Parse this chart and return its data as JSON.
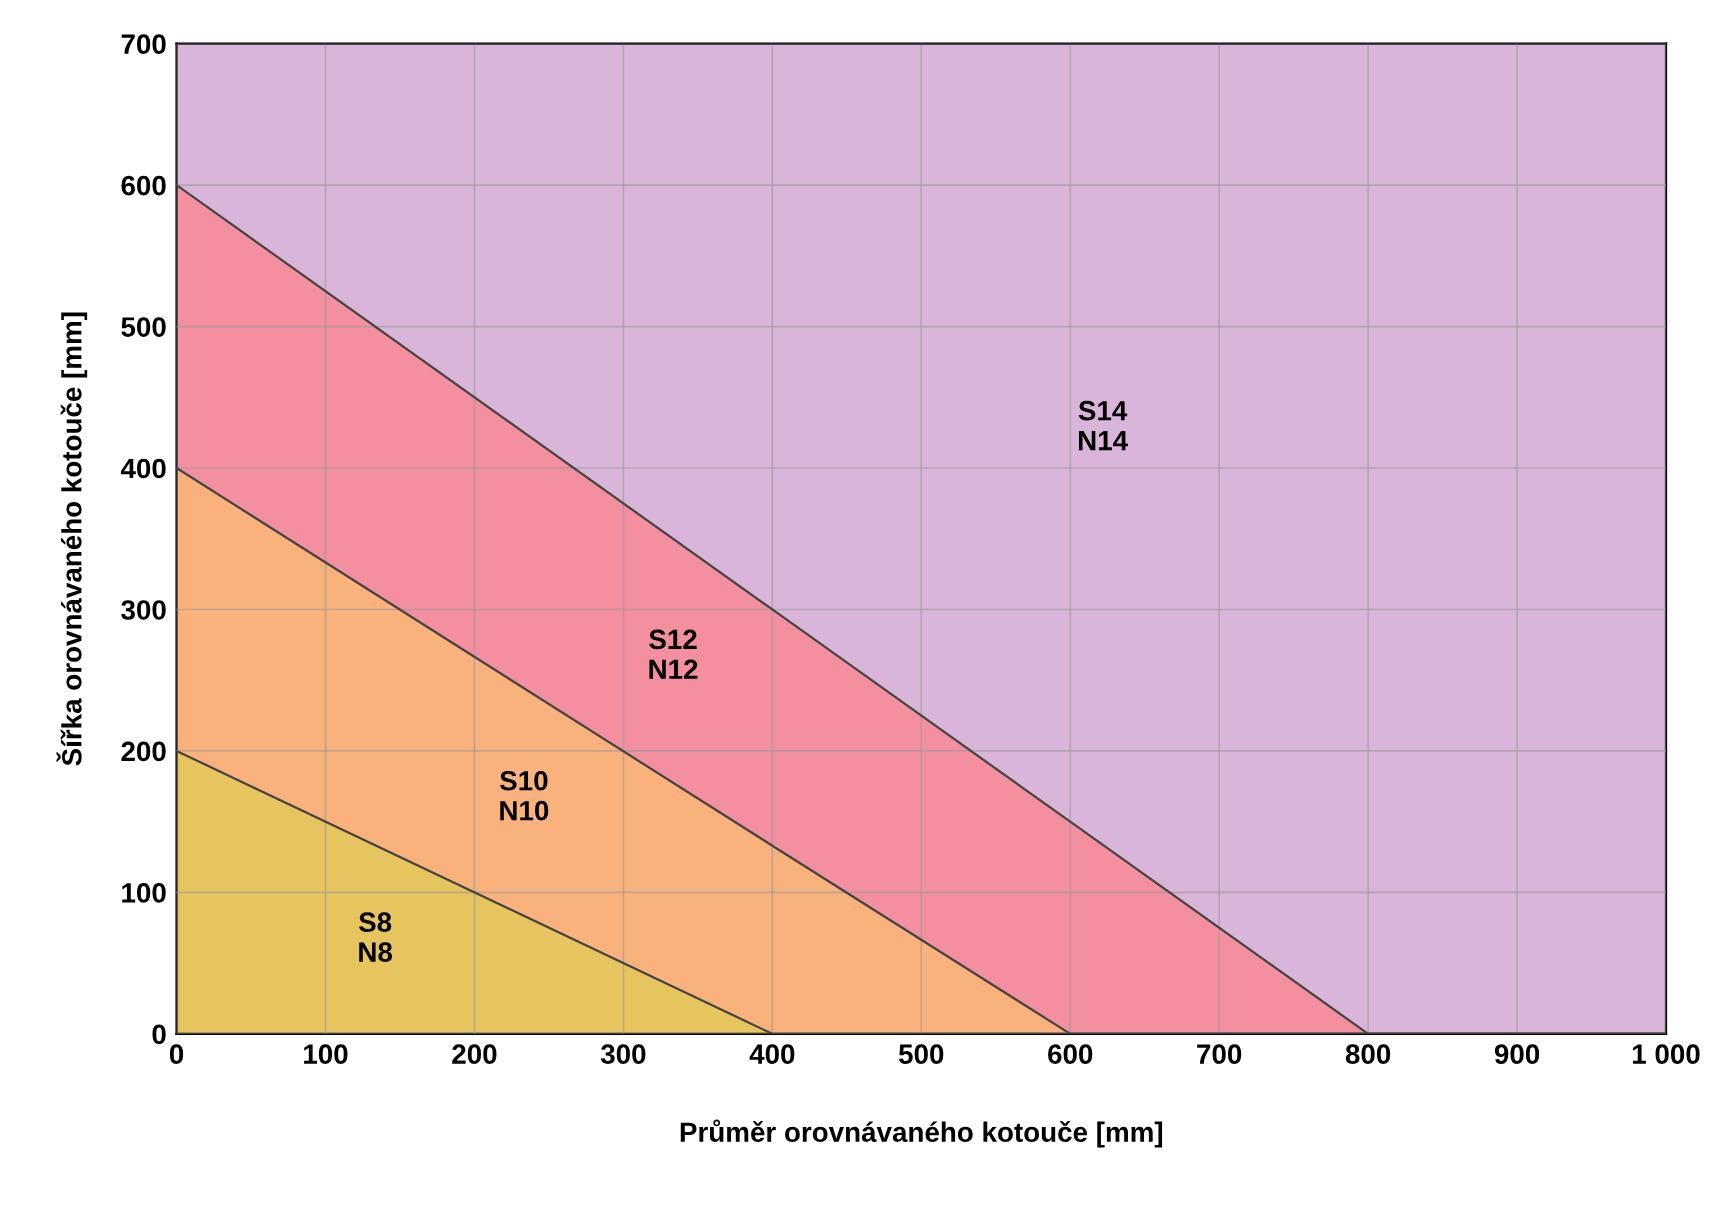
{
  "chart_data": {
    "type": "area",
    "stacked": true,
    "xlabel": "Průměr orovnávaného kotouče [mm]",
    "ylabel": "Šířka orovnávaného kotouče [mm]",
    "x": [
      0,
      400,
      600,
      800,
      1000
    ],
    "series": [
      {
        "name": "S8\nN8",
        "values": [
          200,
          0,
          0,
          0,
          0
        ],
        "color": "#e6c55e"
      },
      {
        "name": "S10\nN10",
        "values": [
          200,
          133,
          0,
          0,
          0
        ],
        "color": "#f9b27c"
      },
      {
        "name": "S12\nN12",
        "values": [
          200,
          167,
          150,
          0,
          0
        ],
        "color": "#f48fa0"
      },
      {
        "name": "S14\nN14",
        "values": [
          100,
          400,
          550,
          700,
          700
        ],
        "color": "#d9b5d9"
      }
    ],
    "xlim": [
      0,
      1000
    ],
    "ylim": [
      0,
      700
    ],
    "xticks": [
      0,
      100,
      200,
      300,
      400,
      500,
      600,
      700,
      800,
      900,
      {
        "value": 1000,
        "label": "1 000"
      }
    ],
    "yticks": [
      0,
      100,
      200,
      300,
      400,
      500,
      600,
      700
    ],
    "grid": true
  }
}
